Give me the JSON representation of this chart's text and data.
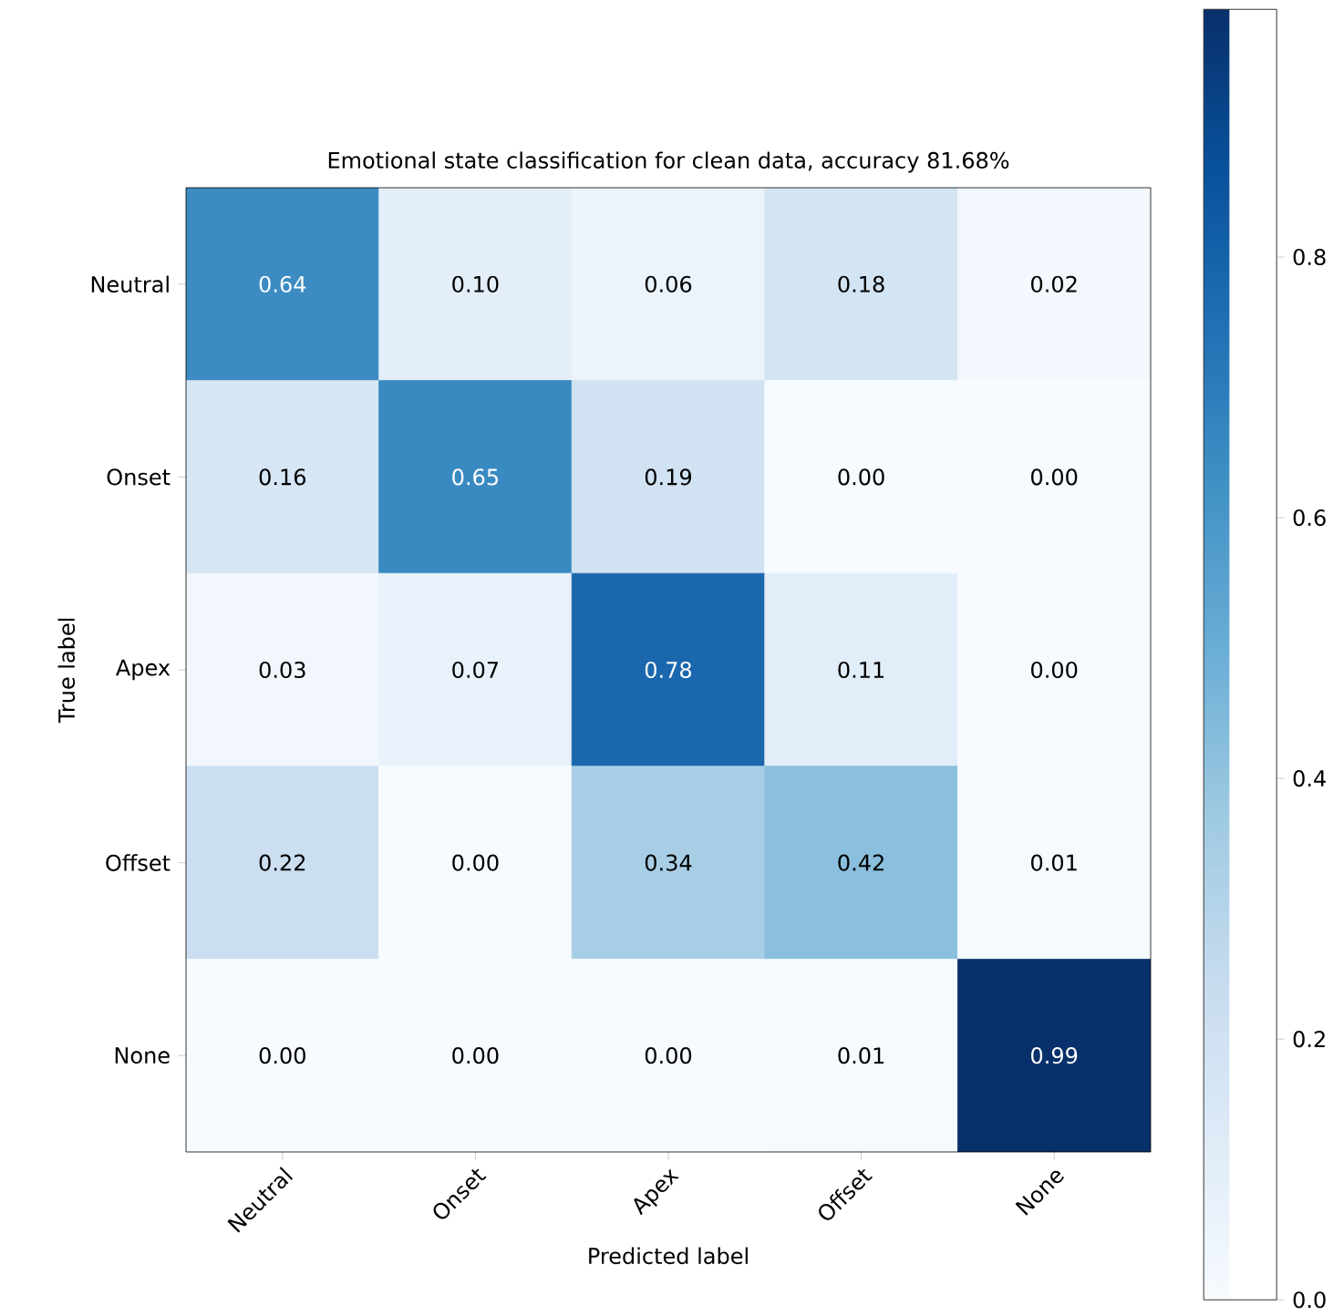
{
  "chart_data": {
    "type": "heatmap",
    "title": "Emotional state classification for clean data, accuracy 81.68%",
    "xlabel": "Predicted label",
    "ylabel": "True label",
    "categories": [
      "Neutral",
      "Onset",
      "Apex",
      "Offset",
      "None"
    ],
    "y_categories": [
      "Neutral",
      "Onset",
      "Apex",
      "Offset",
      "None"
    ],
    "cells": [
      [
        0.64,
        0.1,
        0.06,
        0.18,
        0.02
      ],
      [
        0.16,
        0.65,
        0.19,
        0.0,
        0.0
      ],
      [
        0.03,
        0.07,
        0.78,
        0.11,
        0.0
      ],
      [
        0.22,
        0.0,
        0.34,
        0.42,
        0.01
      ],
      [
        0.0,
        0.0,
        0.0,
        0.01,
        0.99
      ]
    ],
    "cell_labels": [
      [
        "0.64",
        "0.10",
        "0.06",
        "0.18",
        "0.02"
      ],
      [
        "0.16",
        "0.65",
        "0.19",
        "0.00",
        "0.00"
      ],
      [
        "0.03",
        "0.07",
        "0.78",
        "0.11",
        "0.00"
      ],
      [
        "0.22",
        "0.00",
        "0.34",
        "0.42",
        "0.01"
      ],
      [
        "0.00",
        "0.00",
        "0.00",
        "0.01",
        "0.99"
      ]
    ],
    "clim": [
      0,
      0.99
    ],
    "cticks": [
      {
        "value": 0,
        "label": "0.0"
      },
      {
        "value": 0.2,
        "label": "0.2"
      },
      {
        "value": 0.4,
        "label": "0.4"
      },
      {
        "value": 0.6,
        "label": "0.6"
      },
      {
        "value": 0.8,
        "label": "0.8"
      }
    ]
  }
}
